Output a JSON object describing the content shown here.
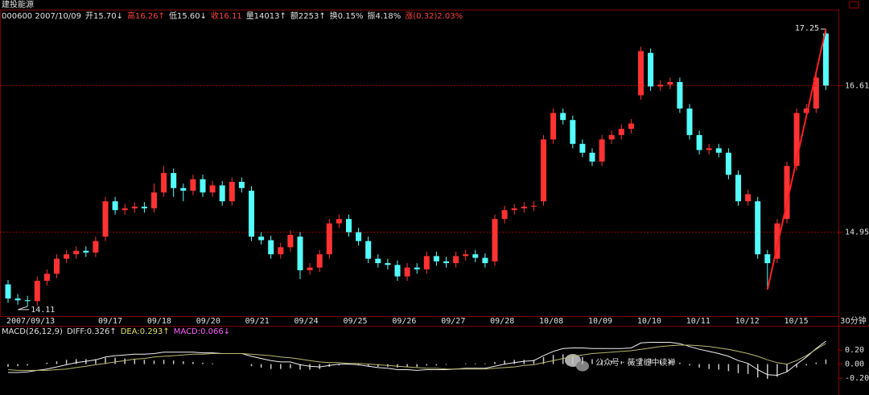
{
  "chart_data": {
    "type": "candlestick",
    "title": "建投能源",
    "info": [
      {
        "text": "000600 2007/10/09",
        "color": "#e0e0e0"
      },
      {
        "text": "开15.70↓",
        "color": "#e0e0e0"
      },
      {
        "text": "高16.26↑",
        "color": "#ff4040"
      },
      {
        "text": "低15.60↓",
        "color": "#e0e0e0"
      },
      {
        "text": "收16.11",
        "color": "#ff4040"
      },
      {
        "text": "量14013↑",
        "color": "#e0e0e0"
      },
      {
        "text": "额2253↑",
        "color": "#e0e0e0"
      },
      {
        "text": "换0.15%",
        "color": "#e0e0e0"
      },
      {
        "text": "振4.18%",
        "color": "#e0e0e0"
      },
      {
        "text": "涨(0.32)2.03%",
        "color": "#ff4040"
      }
    ],
    "up_color": "#ff3232",
    "down_color": "#54fcfc",
    "open": [
      14.36,
      14.2,
      14.18,
      14.17,
      14.4,
      14.48,
      14.65,
      14.7,
      14.74,
      14.72,
      14.9,
      15.3,
      15.2,
      15.22,
      15.24,
      15.22,
      15.4,
      15.62,
      15.45,
      15.42,
      15.55,
      15.4,
      15.48,
      15.3,
      15.52,
      15.42,
      14.9,
      14.86,
      14.7,
      14.78,
      14.9,
      14.52,
      14.55,
      14.7,
      15.05,
      15.1,
      14.95,
      14.85,
      14.65,
      14.6,
      14.58,
      14.45,
      14.55,
      14.53,
      14.68,
      14.62,
      14.6,
      14.68,
      14.7,
      14.66,
      14.62,
      15.1,
      15.2,
      15.22,
      15.24,
      15.3,
      16.0,
      16.3,
      16.22,
      15.95,
      15.85,
      15.75,
      16.0,
      16.05,
      16.12,
      16.5,
      16.98,
      16.6,
      16.62,
      16.65,
      16.35,
      16.05,
      15.88,
      15.9,
      15.85,
      15.6,
      15.3,
      15.3,
      14.7,
      14.65,
      15.1,
      15.7,
      16.3,
      16.35,
      17.2
    ],
    "high": [
      14.41,
      14.25,
      14.23,
      14.45,
      14.53,
      14.7,
      14.75,
      14.79,
      14.79,
      14.9,
      15.35,
      15.35,
      15.27,
      15.29,
      15.29,
      15.5,
      15.7,
      15.67,
      15.5,
      15.6,
      15.6,
      15.53,
      15.53,
      15.57,
      15.57,
      15.47,
      14.95,
      14.91,
      14.83,
      14.97,
      14.95,
      14.6,
      14.75,
      15.1,
      15.15,
      15.15,
      15.0,
      14.9,
      14.7,
      14.65,
      14.63,
      14.6,
      14.6,
      14.73,
      14.73,
      14.67,
      14.73,
      14.75,
      14.75,
      14.71,
      15.15,
      15.25,
      15.27,
      15.29,
      15.3,
      16.05,
      16.35,
      16.35,
      16.27,
      16.0,
      15.9,
      16.05,
      16.1,
      16.17,
      16.23,
      17.05,
      17.03,
      16.67,
      16.7,
      16.7,
      16.4,
      16.1,
      15.95,
      15.95,
      15.9,
      15.65,
      15.43,
      15.35,
      14.75,
      15.1,
      15.75,
      16.35,
      16.4,
      16.75,
      17.25
    ],
    "low": [
      14.15,
      14.13,
      14.11,
      14.12,
      14.35,
      14.43,
      14.6,
      14.65,
      14.67,
      14.67,
      14.85,
      15.15,
      15.15,
      15.17,
      15.17,
      15.17,
      15.35,
      15.35,
      15.3,
      15.37,
      15.35,
      15.35,
      15.25,
      15.25,
      15.4,
      14.85,
      14.81,
      14.65,
      14.65,
      14.73,
      14.42,
      14.47,
      14.5,
      14.65,
      15.0,
      14.9,
      14.8,
      14.6,
      14.55,
      14.53,
      14.4,
      14.4,
      14.48,
      14.48,
      14.57,
      14.55,
      14.55,
      14.63,
      14.61,
      14.55,
      14.57,
      15.05,
      15.15,
      15.17,
      15.19,
      15.25,
      15.95,
      16.17,
      15.9,
      15.8,
      15.7,
      15.7,
      15.95,
      16.0,
      16.07,
      16.45,
      16.55,
      16.55,
      16.57,
      16.3,
      16.0,
      15.83,
      15.83,
      15.8,
      15.55,
      15.25,
      15.25,
      14.65,
      14.3,
      14.6,
      15.05,
      15.65,
      16.25,
      16.3,
      16.56
    ],
    "close": [
      14.2,
      14.18,
      14.17,
      14.4,
      14.48,
      14.65,
      14.7,
      14.74,
      14.72,
      14.85,
      15.3,
      15.2,
      15.22,
      15.24,
      15.22,
      15.4,
      15.62,
      15.45,
      15.42,
      15.55,
      15.4,
      15.48,
      15.3,
      15.52,
      15.45,
      14.9,
      14.86,
      14.7,
      14.78,
      14.92,
      14.52,
      14.55,
      14.7,
      15.05,
      15.1,
      14.95,
      14.85,
      14.65,
      14.6,
      14.58,
      14.45,
      14.55,
      14.53,
      14.68,
      14.62,
      14.6,
      14.68,
      14.7,
      14.66,
      14.6,
      15.1,
      15.2,
      15.22,
      15.24,
      15.25,
      16.0,
      16.3,
      16.22,
      15.95,
      15.85,
      15.75,
      16.0,
      16.05,
      16.12,
      16.18,
      17.0,
      16.6,
      16.62,
      16.65,
      16.35,
      16.05,
      15.88,
      15.9,
      15.85,
      15.6,
      15.3,
      15.38,
      14.7,
      14.6,
      15.05,
      15.7,
      16.3,
      16.35,
      16.7,
      16.61
    ],
    "ylim": [
      14.0,
      17.46
    ],
    "yticks": [
      14.95,
      16.61
    ],
    "xtick_labels": [
      "2007/09/13",
      "09/17",
      "09/18",
      "09/20",
      "09/21",
      "09/24",
      "09/25",
      "09/26",
      "09/27",
      "09/28",
      "10/08",
      "10/09",
      "10/10",
      "10/11",
      "10/12",
      "10/15"
    ],
    "period": "30分钟",
    "macd": {
      "legend": [
        {
          "text": "MACD(26,12,9)",
          "color": "#e0e0e0"
        },
        {
          "text": "DIFF:0.326↑",
          "color": "#e0e0e0"
        },
        {
          "text": "DEA:0.293↑",
          "color": "#e0e060"
        },
        {
          "text": "MACD:0.066↓",
          "color": "#ff60ff"
        }
      ],
      "diff": [
        -0.12,
        -0.12,
        -0.11,
        -0.09,
        -0.07,
        -0.04,
        -0.01,
        0.02,
        0.04,
        0.06,
        0.1,
        0.12,
        0.13,
        0.14,
        0.14,
        0.15,
        0.17,
        0.17,
        0.17,
        0.17,
        0.16,
        0.16,
        0.15,
        0.15,
        0.15,
        0.11,
        0.08,
        0.05,
        0.03,
        0.03,
        -0.01,
        -0.03,
        -0.04,
        -0.02,
        0.0,
        0.0,
        -0.01,
        -0.03,
        -0.05,
        -0.06,
        -0.08,
        -0.08,
        -0.09,
        -0.08,
        -0.08,
        -0.08,
        -0.07,
        -0.06,
        -0.06,
        -0.06,
        -0.03,
        0.0,
        0.02,
        0.04,
        0.05,
        0.12,
        0.18,
        0.22,
        0.23,
        0.23,
        0.22,
        0.22,
        0.22,
        0.22,
        0.23,
        0.3,
        0.31,
        0.31,
        0.31,
        0.29,
        0.25,
        0.21,
        0.18,
        0.15,
        0.11,
        0.05,
        0.01,
        -0.08,
        -0.15,
        -0.16,
        -0.11,
        0.0,
        0.1,
        0.22,
        0.326
      ],
      "dea": [
        -0.08,
        -0.09,
        -0.09,
        -0.09,
        -0.09,
        -0.08,
        -0.07,
        -0.05,
        -0.03,
        -0.01,
        0.01,
        0.03,
        0.05,
        0.07,
        0.08,
        0.1,
        0.11,
        0.12,
        0.13,
        0.14,
        0.14,
        0.15,
        0.15,
        0.15,
        0.15,
        0.14,
        0.13,
        0.12,
        0.1,
        0.09,
        0.07,
        0.05,
        0.03,
        0.02,
        0.02,
        0.01,
        0.01,
        0.0,
        -0.01,
        -0.02,
        -0.03,
        -0.04,
        -0.05,
        -0.06,
        -0.06,
        -0.07,
        -0.07,
        -0.07,
        -0.07,
        -0.07,
        -0.06,
        -0.05,
        -0.04,
        -0.02,
        -0.01,
        0.02,
        0.05,
        0.08,
        0.11,
        0.13,
        0.15,
        0.16,
        0.17,
        0.18,
        0.19,
        0.21,
        0.23,
        0.25,
        0.26,
        0.27,
        0.27,
        0.26,
        0.25,
        0.23,
        0.21,
        0.18,
        0.15,
        0.11,
        0.06,
        0.02,
        0.0,
        0.05,
        0.12,
        0.21,
        0.293
      ],
      "hist": [
        -0.04,
        -0.03,
        -0.02,
        0.0,
        0.02,
        0.04,
        0.06,
        0.07,
        0.07,
        0.07,
        0.09,
        0.09,
        0.08,
        0.07,
        0.06,
        0.05,
        0.06,
        0.05,
        0.04,
        0.03,
        0.02,
        0.01,
        0.0,
        0.0,
        0.0,
        -0.03,
        -0.05,
        -0.07,
        -0.07,
        -0.06,
        -0.08,
        -0.08,
        -0.07,
        -0.04,
        -0.02,
        -0.01,
        -0.02,
        -0.03,
        -0.04,
        -0.04,
        -0.05,
        -0.04,
        -0.04,
        -0.02,
        -0.02,
        -0.01,
        0.0,
        0.01,
        0.01,
        0.01,
        0.03,
        0.05,
        0.06,
        0.06,
        0.06,
        0.1,
        0.13,
        0.14,
        0.12,
        0.1,
        0.07,
        0.06,
        0.05,
        0.04,
        0.04,
        0.09,
        0.08,
        0.06,
        0.05,
        0.02,
        -0.02,
        -0.05,
        -0.07,
        -0.08,
        -0.1,
        -0.13,
        -0.14,
        -0.19,
        -0.21,
        -0.18,
        -0.11,
        -0.05,
        -0.02,
        0.02,
        0.066
      ],
      "ylim": [
        -0.44,
        0.51
      ],
      "yticks": [
        {
          "value": 0.2,
          "label": "0.20"
        },
        {
          "value": 0,
          "label": "0.00"
        },
        {
          "value": -0.2,
          "label": "-0.20"
        }
      ]
    },
    "watermark": "公众号 · 薇宝缠中读禅"
  }
}
